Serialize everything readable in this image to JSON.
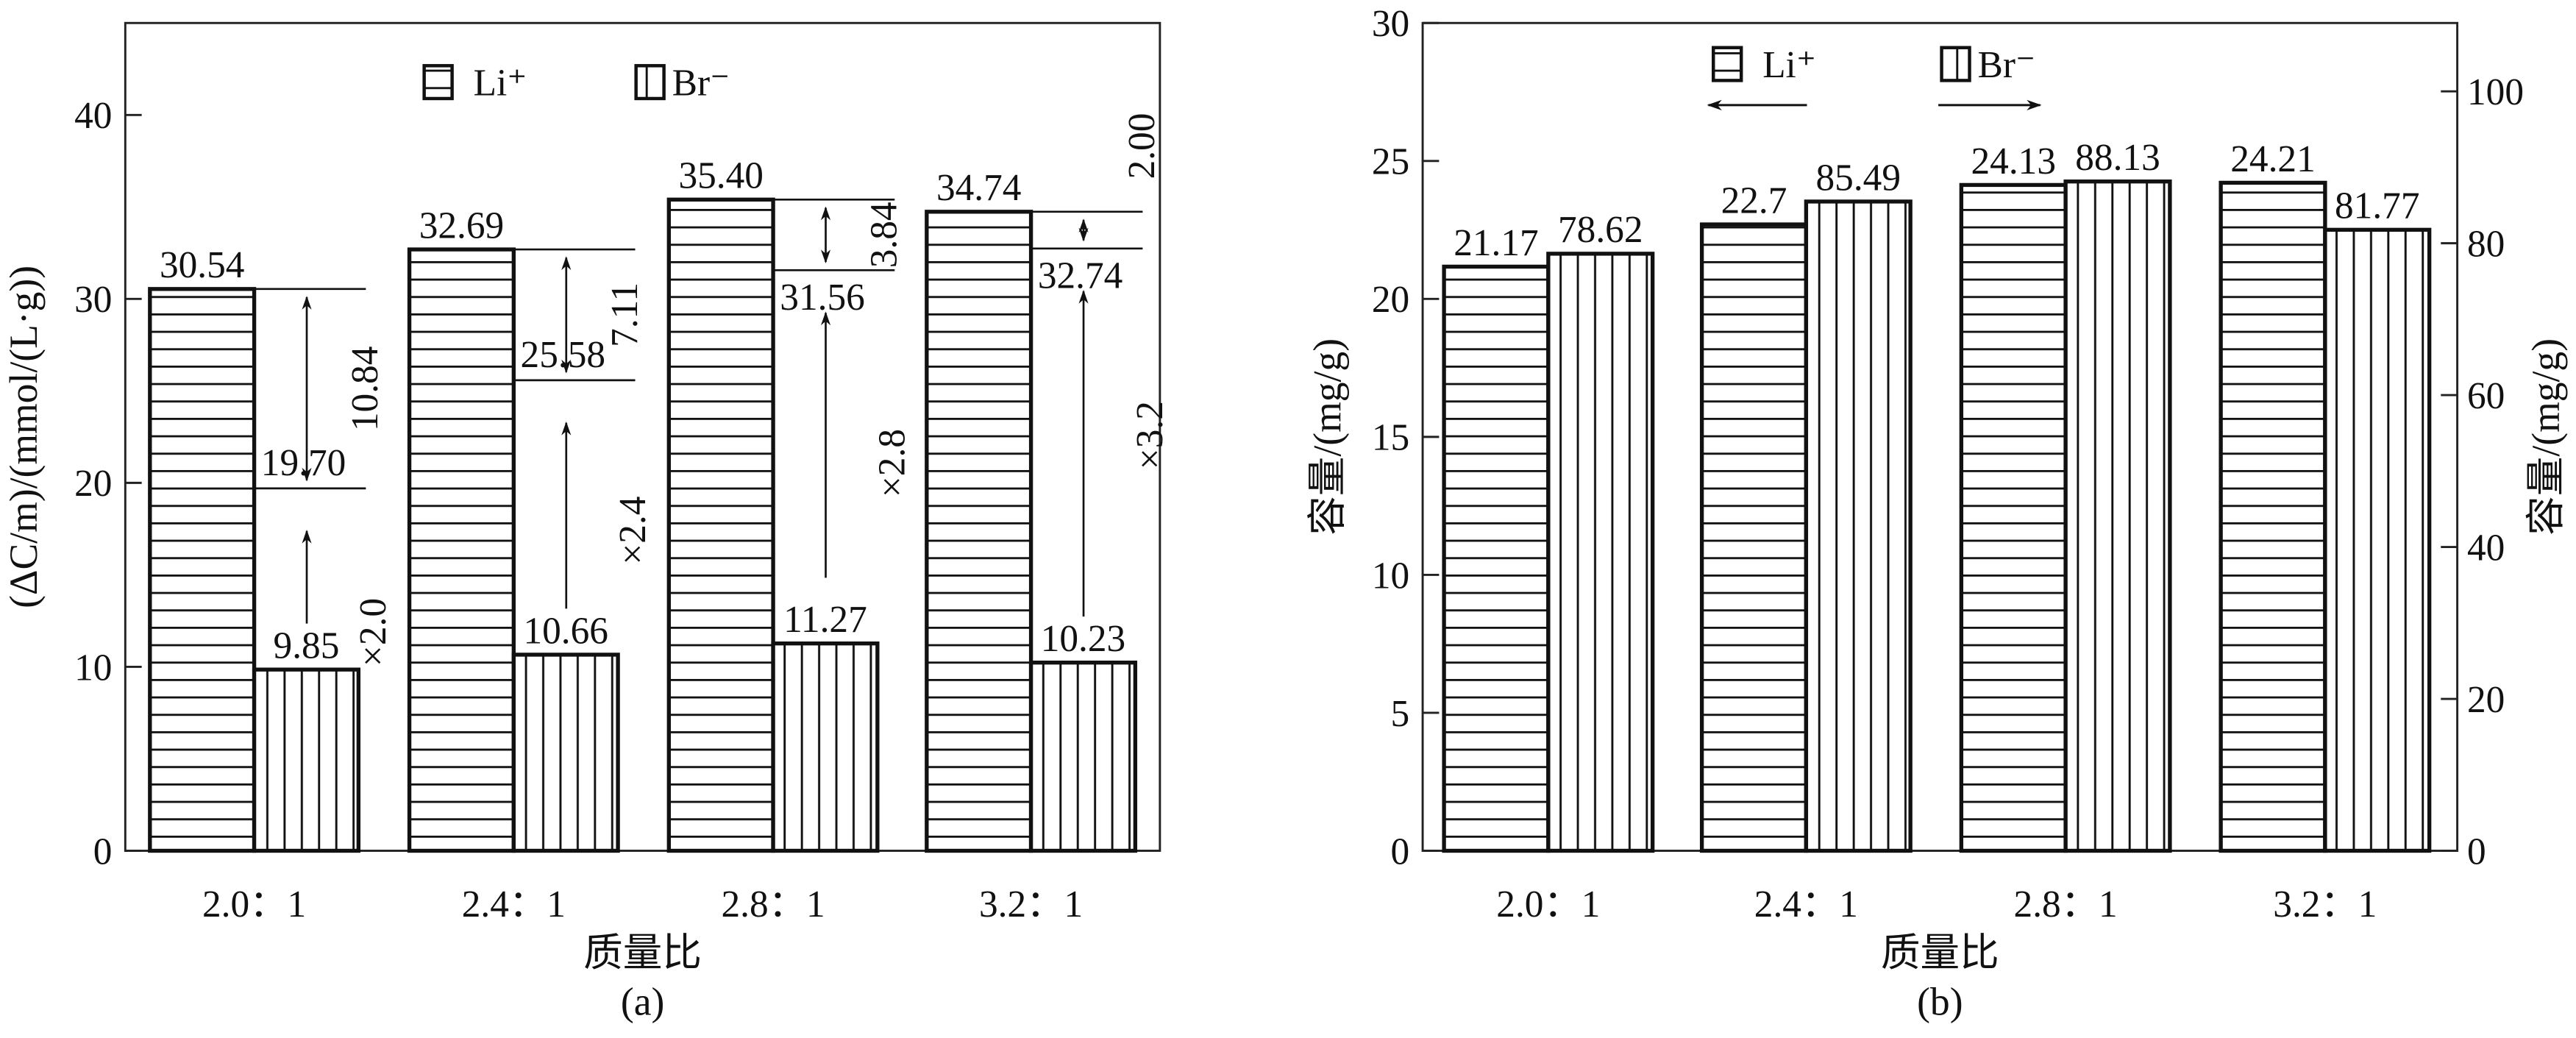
{
  "chart_data": [
    {
      "panel_label": "(a)",
      "type": "bar",
      "categories": [
        "2.0：1",
        "2.4：1",
        "2.8：1",
        "3.2：1"
      ],
      "xlabel": "质量比",
      "ylabel": "(ΔC/m)/(mmol/(L·g))",
      "ylim": [
        0,
        45
      ],
      "yticks": [
        0,
        10,
        20,
        30,
        40
      ],
      "grid": false,
      "legend_placement": "top-center",
      "series": [
        {
          "name": "Li⁺",
          "hatch": "horizontal",
          "values": [
            30.54,
            32.69,
            35.4,
            34.74
          ],
          "labels": [
            "30.54",
            "32.69",
            "35.40",
            "34.74"
          ]
        },
        {
          "name": "Br⁻",
          "hatch": "vertical",
          "values": [
            9.85,
            10.66,
            11.27,
            10.23
          ],
          "labels": [
            "9.85",
            "10.66",
            "11.27",
            "10.23"
          ]
        }
      ],
      "annotations": [
        {
          "scaled_value": 19.7,
          "scaled_label": "19.70",
          "difference_label": "10.84",
          "factor_label": "×2.0"
        },
        {
          "scaled_value": 25.58,
          "scaled_label": "25.58",
          "difference_label": "7.11",
          "factor_label": "×2.4"
        },
        {
          "scaled_value": 31.56,
          "scaled_label": "31.56",
          "difference_label": "3.84",
          "factor_label": "×2.8"
        },
        {
          "scaled_value": 32.74,
          "scaled_label": "32.74",
          "difference_label": "2.00",
          "factor_label": "×3.2"
        }
      ]
    },
    {
      "panel_label": "(b)",
      "type": "bar",
      "categories": [
        "2.0：1",
        "2.4：1",
        "2.8：1",
        "3.2：1"
      ],
      "xlabel": "质量比",
      "ylabel": "容量/(mg/g)",
      "ylabel_right": "容量/(mg/g)",
      "ylim": [
        0,
        30
      ],
      "yticks": [
        0,
        5,
        10,
        15,
        20,
        25,
        30
      ],
      "ylim_right": [
        0,
        109
      ],
      "yticks_right": [
        0,
        20,
        40,
        60,
        80,
        100
      ],
      "grid": false,
      "legend_placement": "top-center",
      "series": [
        {
          "name": "Li⁺",
          "axis": "left",
          "hatch": "horizontal",
          "values": [
            21.17,
            22.7,
            24.13,
            24.21
          ],
          "labels": [
            "21.17",
            "22.7",
            "24.13",
            "24.21"
          ]
        },
        {
          "name": "Br⁻",
          "axis": "right",
          "hatch": "vertical",
          "values": [
            78.62,
            85.49,
            88.13,
            81.77
          ],
          "labels": [
            "78.62",
            "85.49",
            "88.13",
            "81.77"
          ]
        }
      ]
    }
  ]
}
